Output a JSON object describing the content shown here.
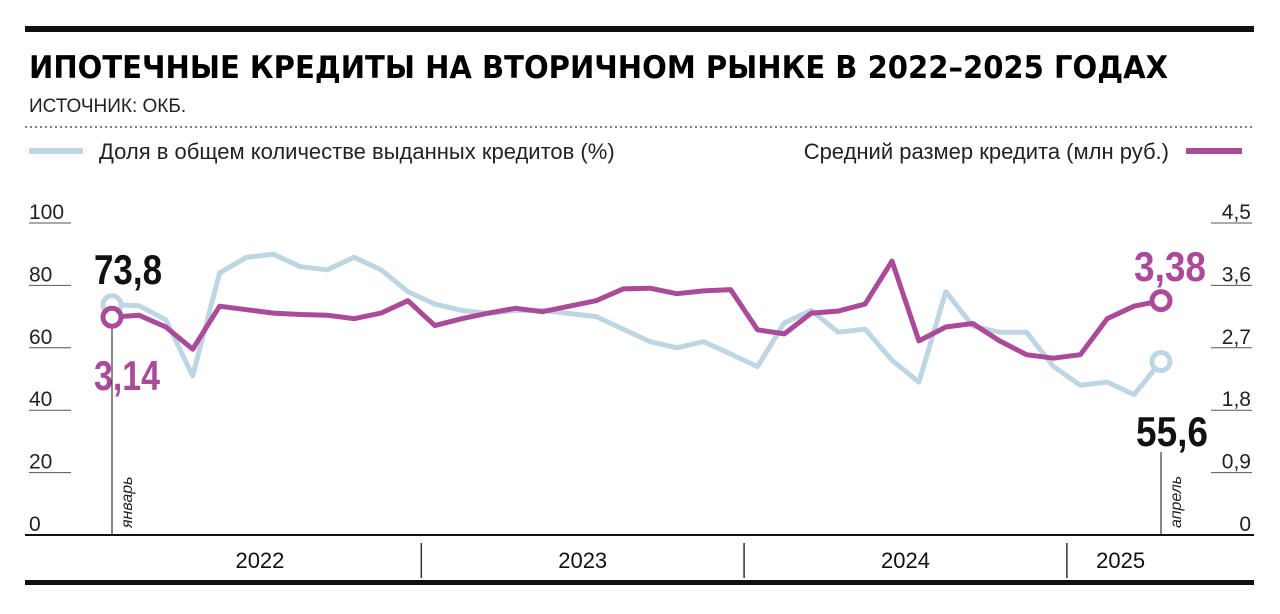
{
  "header": {
    "title": "ИПОТЕЧНЫЕ КРЕДИТЫ НА ВТОРИЧНОМ РЫНКЕ В 2022–2025 ГОДАХ",
    "source": "ИСТОЧНИК: ОКБ."
  },
  "legend": {
    "share": "Доля в общем количестве выданных кредитов (%)",
    "size": "Средний размер кредита (млн руб.)"
  },
  "colors": {
    "share": "#bed5e2",
    "size": "#aa4a98",
    "text": "#111111",
    "rule": "#111111"
  },
  "axes": {
    "left_ticks": [
      "100",
      "80",
      "60",
      "40",
      "20",
      "0"
    ],
    "right_ticks": [
      "4,5",
      "3,6",
      "2,7",
      "1,8",
      "0,9",
      "0"
    ],
    "years": [
      "2022",
      "2023",
      "2024",
      "2025"
    ],
    "start_month": "январь",
    "end_month": "апрель"
  },
  "annotations": {
    "share_first": "73,8",
    "share_last": "55,6",
    "size_first": "3,14",
    "size_last": "3,38"
  },
  "chart_data": {
    "type": "line",
    "title": "ИПОТЕЧНЫЕ КРЕДИТЫ НА ВТОРИЧНОМ РЫНКЕ В 2022–2025 ГОДАХ",
    "x": [
      "2022-01",
      "2022-02",
      "2022-03",
      "2022-04",
      "2022-05",
      "2022-06",
      "2022-07",
      "2022-08",
      "2022-09",
      "2022-10",
      "2022-11",
      "2022-12",
      "2023-01",
      "2023-02",
      "2023-03",
      "2023-04",
      "2023-05",
      "2023-06",
      "2023-07",
      "2023-08",
      "2023-09",
      "2023-10",
      "2023-11",
      "2023-12",
      "2024-01",
      "2024-02",
      "2024-03",
      "2024-04",
      "2024-05",
      "2024-06",
      "2024-07",
      "2024-08",
      "2024-09",
      "2024-10",
      "2024-11",
      "2024-12",
      "2025-01",
      "2025-02",
      "2025-03",
      "2025-04"
    ],
    "series": [
      {
        "name": "Доля в общем количестве выданных кредитов (%)",
        "axis": "left",
        "ylim": [
          0,
          100
        ],
        "values": [
          73.8,
          73.5,
          69,
          51,
          84,
          89,
          90,
          86,
          85,
          89,
          85,
          78,
          74,
          72,
          71,
          72,
          72,
          71,
          70,
          66,
          62,
          60,
          62,
          58,
          54,
          68,
          72,
          65,
          66,
          56,
          49,
          78,
          67,
          65,
          65,
          54,
          48,
          49,
          45,
          55.6
        ]
      },
      {
        "name": "Средний размер кредита (млн руб.)",
        "axis": "right",
        "ylim": [
          0,
          4.5
        ],
        "values": [
          3.14,
          3.17,
          3.0,
          2.68,
          3.3,
          3.25,
          3.2,
          3.18,
          3.17,
          3.12,
          3.2,
          3.38,
          3.02,
          3.12,
          3.2,
          3.27,
          3.22,
          3.3,
          3.38,
          3.55,
          3.56,
          3.48,
          3.52,
          3.54,
          2.96,
          2.9,
          3.2,
          3.23,
          3.33,
          3.95,
          2.8,
          3.0,
          3.05,
          2.8,
          2.6,
          2.55,
          2.6,
          3.12,
          3.3,
          3.38
        ]
      }
    ]
  }
}
